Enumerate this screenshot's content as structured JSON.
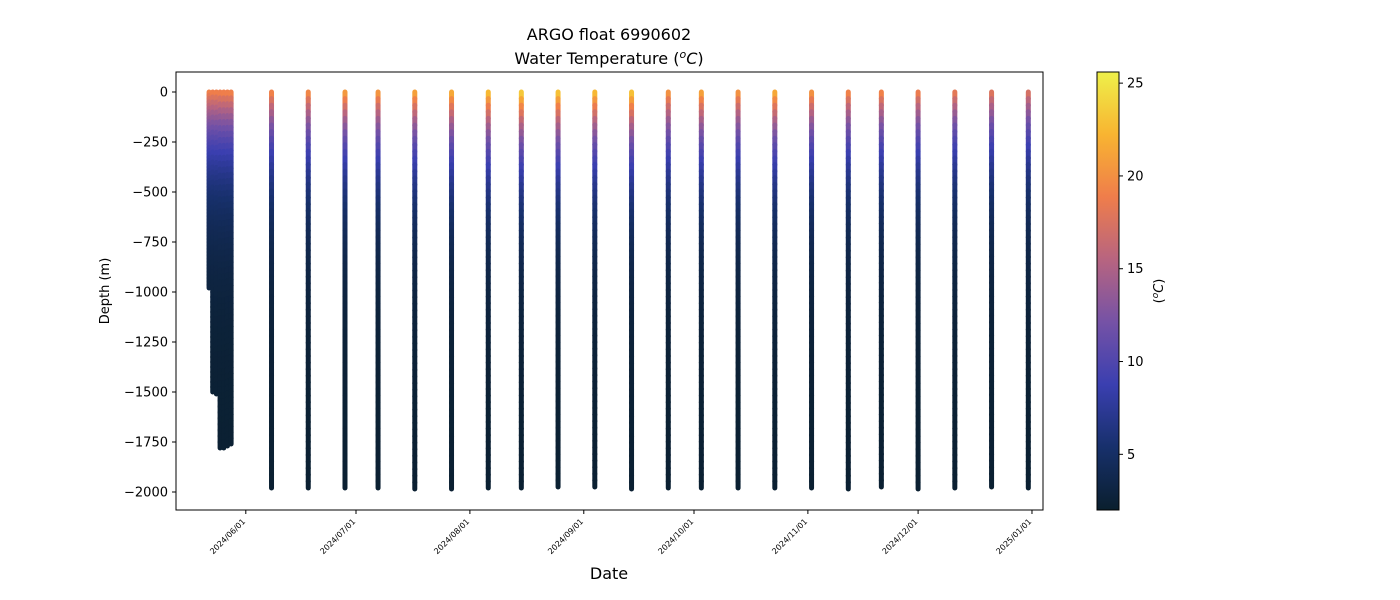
{
  "chart_data": {
    "type": "scatter",
    "title": "ARGO float 6990602",
    "subtitle_prefix": "Water Temperature (",
    "subtitle_unit_sup": "o",
    "subtitle_unit_letter": "C",
    "subtitle_suffix": ")",
    "xlabel": "Date",
    "ylabel": "Depth (m)",
    "colorbar_label_prefix": "(",
    "colorbar_label_sup": "o",
    "colorbar_label_letter": "C",
    "colorbar_label_suffix": ")",
    "xlim": [
      "2024-05-13",
      "2025-01-04"
    ],
    "ylim": [
      -2090,
      100
    ],
    "y_ticks": [
      0,
      -250,
      -500,
      -750,
      -1000,
      -1250,
      -1500,
      -1750,
      -2000
    ],
    "y_tick_labels": [
      "0",
      "−250",
      "−500",
      "−750",
      "−1000",
      "−1250",
      "−1500",
      "−1750",
      "−2000"
    ],
    "x_ticks": [
      "2024-06-01",
      "2024-07-01",
      "2024-08-01",
      "2024-09-01",
      "2024-10-01",
      "2024-11-01",
      "2024-12-01",
      "2025-01-01"
    ],
    "x_tick_labels": [
      "2024/06/01",
      "2024/07/01",
      "2024/08/01",
      "2024/09/01",
      "2024/10/01",
      "2024/11/01",
      "2024/12/01",
      "2025/01/01"
    ],
    "colorbar": {
      "range": [
        2,
        25.6
      ],
      "ticks": [
        5,
        10,
        15,
        20,
        25
      ],
      "tick_labels": [
        "5",
        "10",
        "15",
        "20",
        "25"
      ],
      "colormap_stops": [
        "#0a1f2e",
        "#17306b",
        "#3a3fb0",
        "#7552a6",
        "#b76480",
        "#ef7d4b",
        "#f8b431",
        "#eef04a"
      ]
    },
    "profiles": [
      {
        "date": "2024-05-22",
        "max_depth": 980,
        "surface_temp": 19.5
      },
      {
        "date": "2024-05-23",
        "max_depth": 1500,
        "surface_temp": 19.5
      },
      {
        "date": "2024-05-24",
        "max_depth": 1510,
        "surface_temp": 19.6
      },
      {
        "date": "2024-05-25",
        "max_depth": 1780,
        "surface_temp": 19.6
      },
      {
        "date": "2024-05-26",
        "max_depth": 1780,
        "surface_temp": 19.7
      },
      {
        "date": "2024-05-27",
        "max_depth": 1770,
        "surface_temp": 19.7
      },
      {
        "date": "2024-05-28",
        "max_depth": 1760,
        "surface_temp": 19.8
      },
      {
        "date": "2024-06-08",
        "max_depth": 1980,
        "surface_temp": 20.0
      },
      {
        "date": "2024-06-18",
        "max_depth": 1980,
        "surface_temp": 20.3
      },
      {
        "date": "2024-06-28",
        "max_depth": 1980,
        "surface_temp": 21.5
      },
      {
        "date": "2024-07-07",
        "max_depth": 1980,
        "surface_temp": 21.2
      },
      {
        "date": "2024-07-17",
        "max_depth": 1985,
        "surface_temp": 22.0
      },
      {
        "date": "2024-07-27",
        "max_depth": 1985,
        "surface_temp": 22.5
      },
      {
        "date": "2024-08-06",
        "max_depth": 1980,
        "surface_temp": 23.5
      },
      {
        "date": "2024-08-15",
        "max_depth": 1980,
        "surface_temp": 24.5
      },
      {
        "date": "2024-08-25",
        "max_depth": 1975,
        "surface_temp": 24.0
      },
      {
        "date": "2024-09-04",
        "max_depth": 1975,
        "surface_temp": 23.5
      },
      {
        "date": "2024-09-14",
        "max_depth": 1985,
        "surface_temp": 24.0
      },
      {
        "date": "2024-09-24",
        "max_depth": 1980,
        "surface_temp": 21.0
      },
      {
        "date": "2024-10-03",
        "max_depth": 1980,
        "surface_temp": 22.0
      },
      {
        "date": "2024-10-13",
        "max_depth": 1980,
        "surface_temp": 21.0
      },
      {
        "date": "2024-10-23",
        "max_depth": 1980,
        "surface_temp": 22.5
      },
      {
        "date": "2024-11-02",
        "max_depth": 1980,
        "surface_temp": 21.0
      },
      {
        "date": "2024-11-12",
        "max_depth": 1985,
        "surface_temp": 20.0
      },
      {
        "date": "2024-11-21",
        "max_depth": 1975,
        "surface_temp": 20.0
      },
      {
        "date": "2024-12-01",
        "max_depth": 1985,
        "surface_temp": 19.5
      },
      {
        "date": "2024-12-11",
        "max_depth": 1980,
        "surface_temp": 19.0
      },
      {
        "date": "2024-12-21",
        "max_depth": 1975,
        "surface_temp": 18.5
      },
      {
        "date": "2024-12-31",
        "max_depth": 1980,
        "surface_temp": 18.0
      }
    ]
  }
}
